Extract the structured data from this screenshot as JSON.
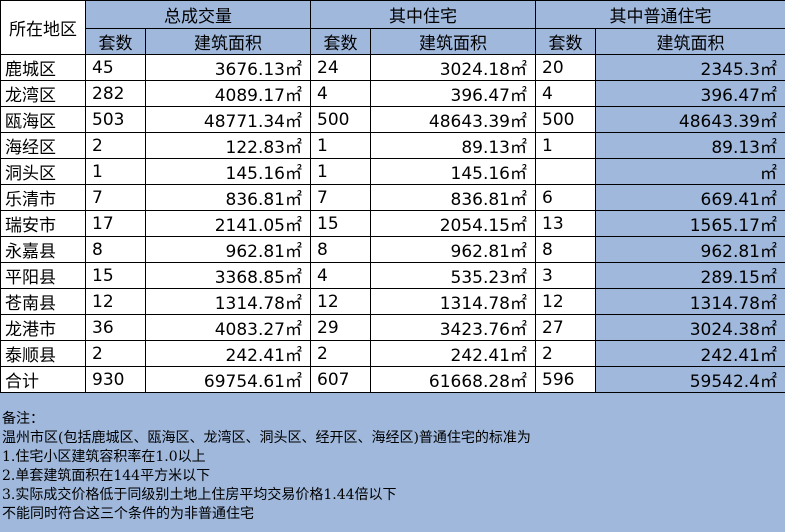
{
  "header": {
    "region": "所在地区",
    "group_total": "总成交量",
    "group_residential": "其中住宅",
    "group_ordinary": "其中普通住宅",
    "sets": "套数",
    "area": "建筑面积"
  },
  "rows": [
    {
      "region": "鹿城区",
      "t_sets": "45",
      "t_area": "3676.13㎡",
      "r_sets": "24",
      "r_area": "3024.18㎡",
      "o_sets": "20",
      "o_area": "2345.3㎡"
    },
    {
      "region": "龙湾区",
      "t_sets": "282",
      "t_area": "4089.17㎡",
      "r_sets": "4",
      "r_area": "396.47㎡",
      "o_sets": "4",
      "o_area": "396.47㎡"
    },
    {
      "region": "瓯海区",
      "t_sets": "503",
      "t_area": "48771.34㎡",
      "r_sets": "500",
      "r_area": "48643.39㎡",
      "o_sets": "500",
      "o_area": "48643.39㎡"
    },
    {
      "region": "海经区",
      "t_sets": "2",
      "t_area": "122.83㎡",
      "r_sets": "1",
      "r_area": "89.13㎡",
      "o_sets": "1",
      "o_area": "89.13㎡"
    },
    {
      "region": "洞头区",
      "t_sets": "1",
      "t_area": "145.16㎡",
      "r_sets": "1",
      "r_area": "145.16㎡",
      "o_sets": "",
      "o_area": "㎡"
    },
    {
      "region": "乐清市",
      "t_sets": "7",
      "t_area": "836.81㎡",
      "r_sets": "7",
      "r_area": "836.81㎡",
      "o_sets": "6",
      "o_area": "669.41㎡"
    },
    {
      "region": "瑞安市",
      "t_sets": "17",
      "t_area": "2141.05㎡",
      "r_sets": "15",
      "r_area": "2054.15㎡",
      "o_sets": "13",
      "o_area": "1565.17㎡"
    },
    {
      "region": "永嘉县",
      "t_sets": "8",
      "t_area": "962.81㎡",
      "r_sets": "8",
      "r_area": "962.81㎡",
      "o_sets": "8",
      "o_area": "962.81㎡"
    },
    {
      "region": "平阳县",
      "t_sets": "15",
      "t_area": "3368.85㎡",
      "r_sets": "4",
      "r_area": "535.23㎡",
      "o_sets": "3",
      "o_area": "289.15㎡"
    },
    {
      "region": "苍南县",
      "t_sets": "12",
      "t_area": "1314.78㎡",
      "r_sets": "12",
      "r_area": "1314.78㎡",
      "o_sets": "12",
      "o_area": "1314.78㎡"
    },
    {
      "region": "龙港市",
      "t_sets": "36",
      "t_area": "4083.27㎡",
      "r_sets": "29",
      "r_area": "3423.76㎡",
      "o_sets": "27",
      "o_area": "3024.38㎡"
    },
    {
      "region": "泰顺县",
      "t_sets": "2",
      "t_area": "242.41㎡",
      "r_sets": "2",
      "r_area": "242.41㎡",
      "o_sets": "2",
      "o_area": "242.41㎡"
    },
    {
      "region": "合计",
      "t_sets": "930",
      "t_area": "69754.61㎡",
      "r_sets": "607",
      "r_area": "61668.28㎡",
      "o_sets": "596",
      "o_area": "59542.4㎡"
    }
  ],
  "notes": [
    "备注：",
    "温州市区(包括鹿城区、瓯海区、龙湾区、洞头区、经开区、海经区)普通住宅的标准为",
    "1.住宅小区建筑容积率在1.0以上",
    "2.单套建筑面积在144平方米以下",
    "3.实际成交价格低于同级别土地上住房平均交易价格1.44倍以下",
    "不能同时符合这三个条件的为非普通住宅"
  ],
  "colors": {
    "background_blue": "#9fb8dc",
    "cell_white": "#ffffff",
    "border": "#000000"
  }
}
